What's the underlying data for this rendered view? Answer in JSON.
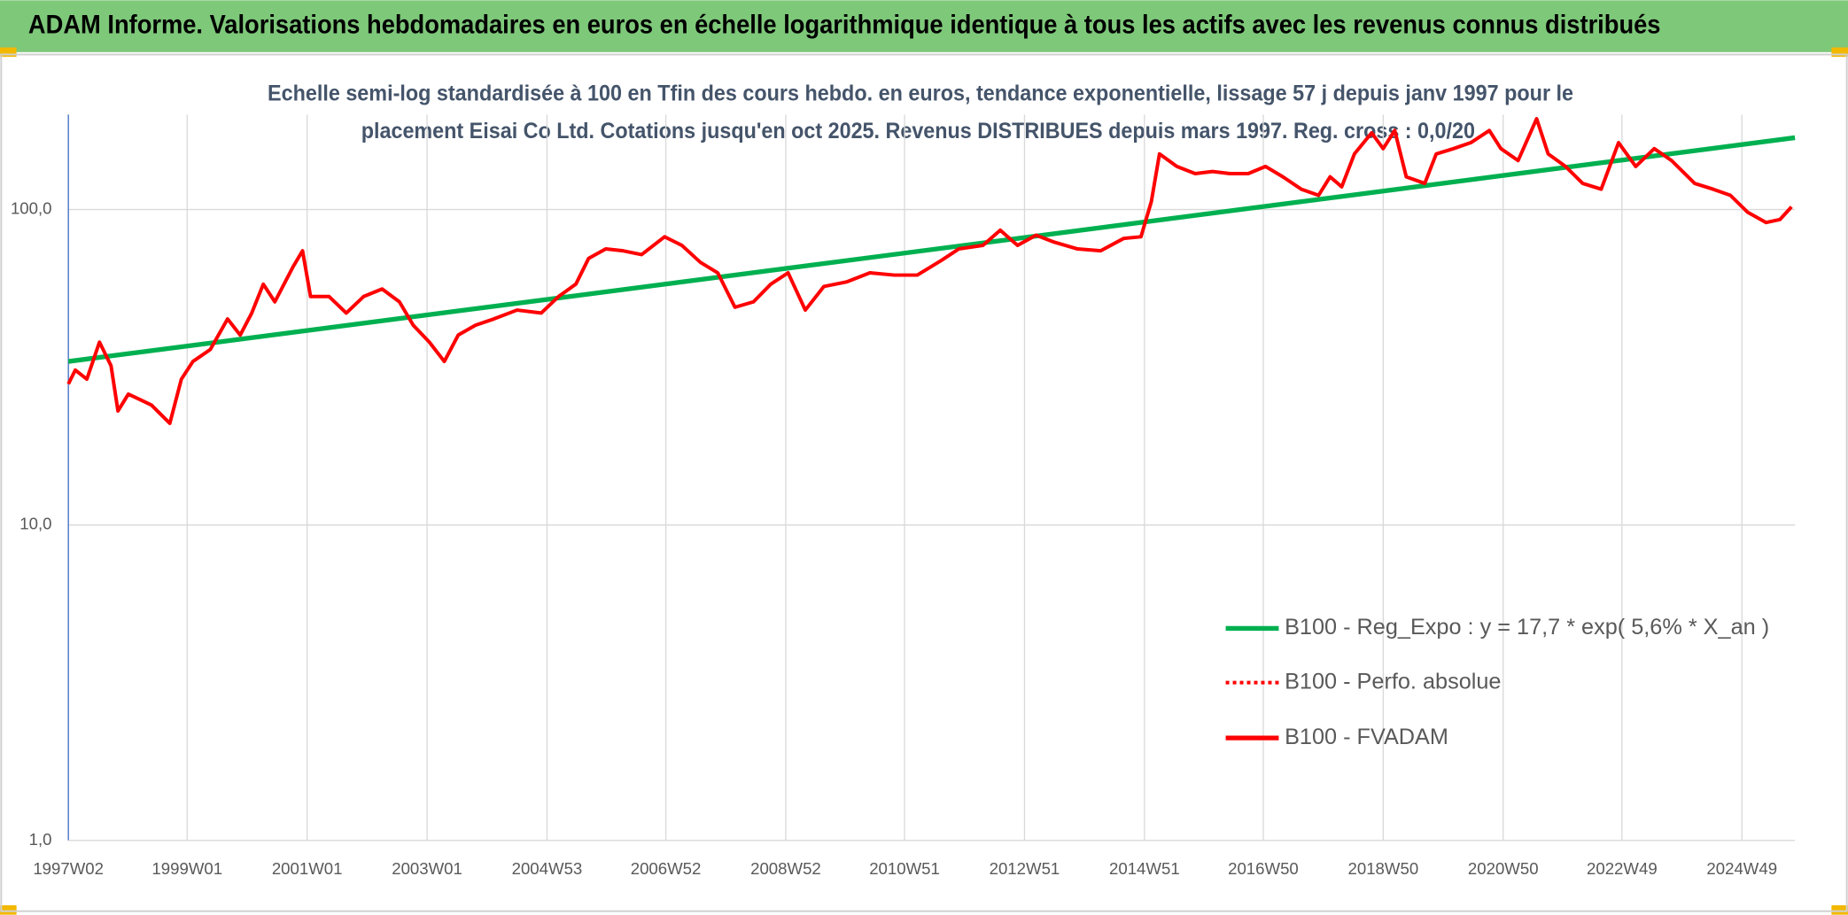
{
  "chart_data": {
    "type": "line",
    "title": "ADAM Informe. Valorisations hebdomadaires en euros en échelle logarithmique identique à tous les actifs avec les revenus connus distribués",
    "subtitle": [
      "Echelle semi-log standardisée à 100 en Tfin des cours hebdo. en euros, tendance exponentielle, lissage 57 j depuis janv 1997 pour le",
      "placement Eisai Co Ltd. Cotations jusqu'en oct 2025. Revenus DISTRIBUES depuis mars 1997. Reg. cross : 0,0/20"
    ],
    "log_scale": true,
    "grid": true,
    "legend": "right",
    "xlim": [
      "1997W02",
      "2025W43"
    ],
    "xticks": [
      "1997W02",
      "1999W01",
      "2001W01",
      "2003W01",
      "2004W53",
      "2006W52",
      "2008W52",
      "2010W51",
      "2012W51",
      "2014W51",
      "2016W50",
      "2018W50",
      "2020W50",
      "2022W49",
      "2024W49"
    ],
    "ylim": [
      1,
      200
    ],
    "yticks": [
      {
        "value": 1,
        "label": "1,0"
      },
      {
        "value": 10,
        "label": "10,0"
      },
      {
        "value": 100,
        "label": "100,0"
      }
    ],
    "series": [
      {
        "name": "B100 - Reg_Expo : y = 17,7 * exp( 5,6% *  X_an )",
        "color": "#00b050",
        "x": [
          "1997W02",
          "2025W43"
        ],
        "values": [
          33,
          169
        ]
      },
      {
        "name": "B100 - Perfo. absolue",
        "color": "#ff0000",
        "dash": "dotted"
      },
      {
        "name": "B100 - FVADAM",
        "color": "#ff0000",
        "x": [
          "1997W02",
          "1997W08",
          "1997W18",
          "1997W29",
          "1997W39",
          "1997W45",
          "1998W02",
          "1998W12",
          "1998W22",
          "1998W38",
          "1998W48",
          "1999W06",
          "1999W21",
          "1999W36",
          "1999W47",
          "2000W05",
          "2000W15",
          "2000W25",
          "2000W41",
          "2000W49",
          "2001W04",
          "2001W20",
          "2001W35",
          "2001W50",
          "2002W14",
          "2002W29",
          "2002W41",
          "2003W03",
          "2003W16",
          "2003W28",
          "2003W43",
          "2004W07",
          "2004W27",
          "2004W48",
          "2005W11",
          "2005W26",
          "2005W37",
          "2005W52",
          "2006W15",
          "2006W31",
          "2006W51",
          "2007W14",
          "2007W30",
          "2007W45",
          "2008W08",
          "2008W24",
          "2008W39",
          "2009W02",
          "2009W17",
          "2009W33",
          "2010W01",
          "2010W21",
          "2010W42",
          "2011W10",
          "2011W31",
          "2011W46",
          "2012W15",
          "2012W30",
          "2012W45",
          "2013W09",
          "2013W24",
          "2013W45",
          "2014W13",
          "2014W33",
          "2014W48",
          "2015W05",
          "2015W12",
          "2015W27",
          "2015W43",
          "2016W06",
          "2016W21",
          "2016W37",
          "2016W52",
          "2017W15",
          "2017W31",
          "2017W46",
          "2018W04",
          "2018W14",
          "2018W25",
          "2018W40",
          "2018W50",
          "2019W08",
          "2019W18",
          "2019W34",
          "2019W44",
          "2020W07",
          "2020W22",
          "2020W38",
          "2020W48",
          "2021W11",
          "2021W27",
          "2021W37",
          "2021W52",
          "2022W15",
          "2022W31",
          "2022W46",
          "2023W09",
          "2023W25",
          "2023W40",
          "2024W08",
          "2024W24",
          "2024W39",
          "2025W02",
          "2025W18",
          "2025W30",
          "2025W40"
        ],
        "values": [
          28,
          31,
          29,
          38,
          32,
          23,
          26,
          25,
          24,
          21,
          29,
          33,
          36,
          45,
          40,
          47,
          58,
          51,
          66,
          74,
          53,
          53,
          47,
          53,
          56,
          51,
          43,
          38,
          33,
          40,
          43,
          45,
          48,
          47,
          53,
          58,
          70,
          75,
          74,
          72,
          82,
          77,
          68,
          63,
          49,
          51,
          58,
          63,
          48,
          57,
          59,
          63,
          62,
          62,
          69,
          75,
          77,
          86,
          77,
          83,
          79,
          75,
          74,
          81,
          82,
          106,
          150,
          137,
          130,
          132,
          130,
          130,
          137,
          127,
          116,
          111,
          127,
          118,
          150,
          175,
          156,
          178,
          127,
          121,
          150,
          156,
          163,
          178,
          156,
          143,
          194,
          150,
          137,
          121,
          116,
          163,
          137,
          156,
          143,
          121,
          116,
          111,
          98,
          91,
          93,
          102
        ]
      }
    ]
  }
}
